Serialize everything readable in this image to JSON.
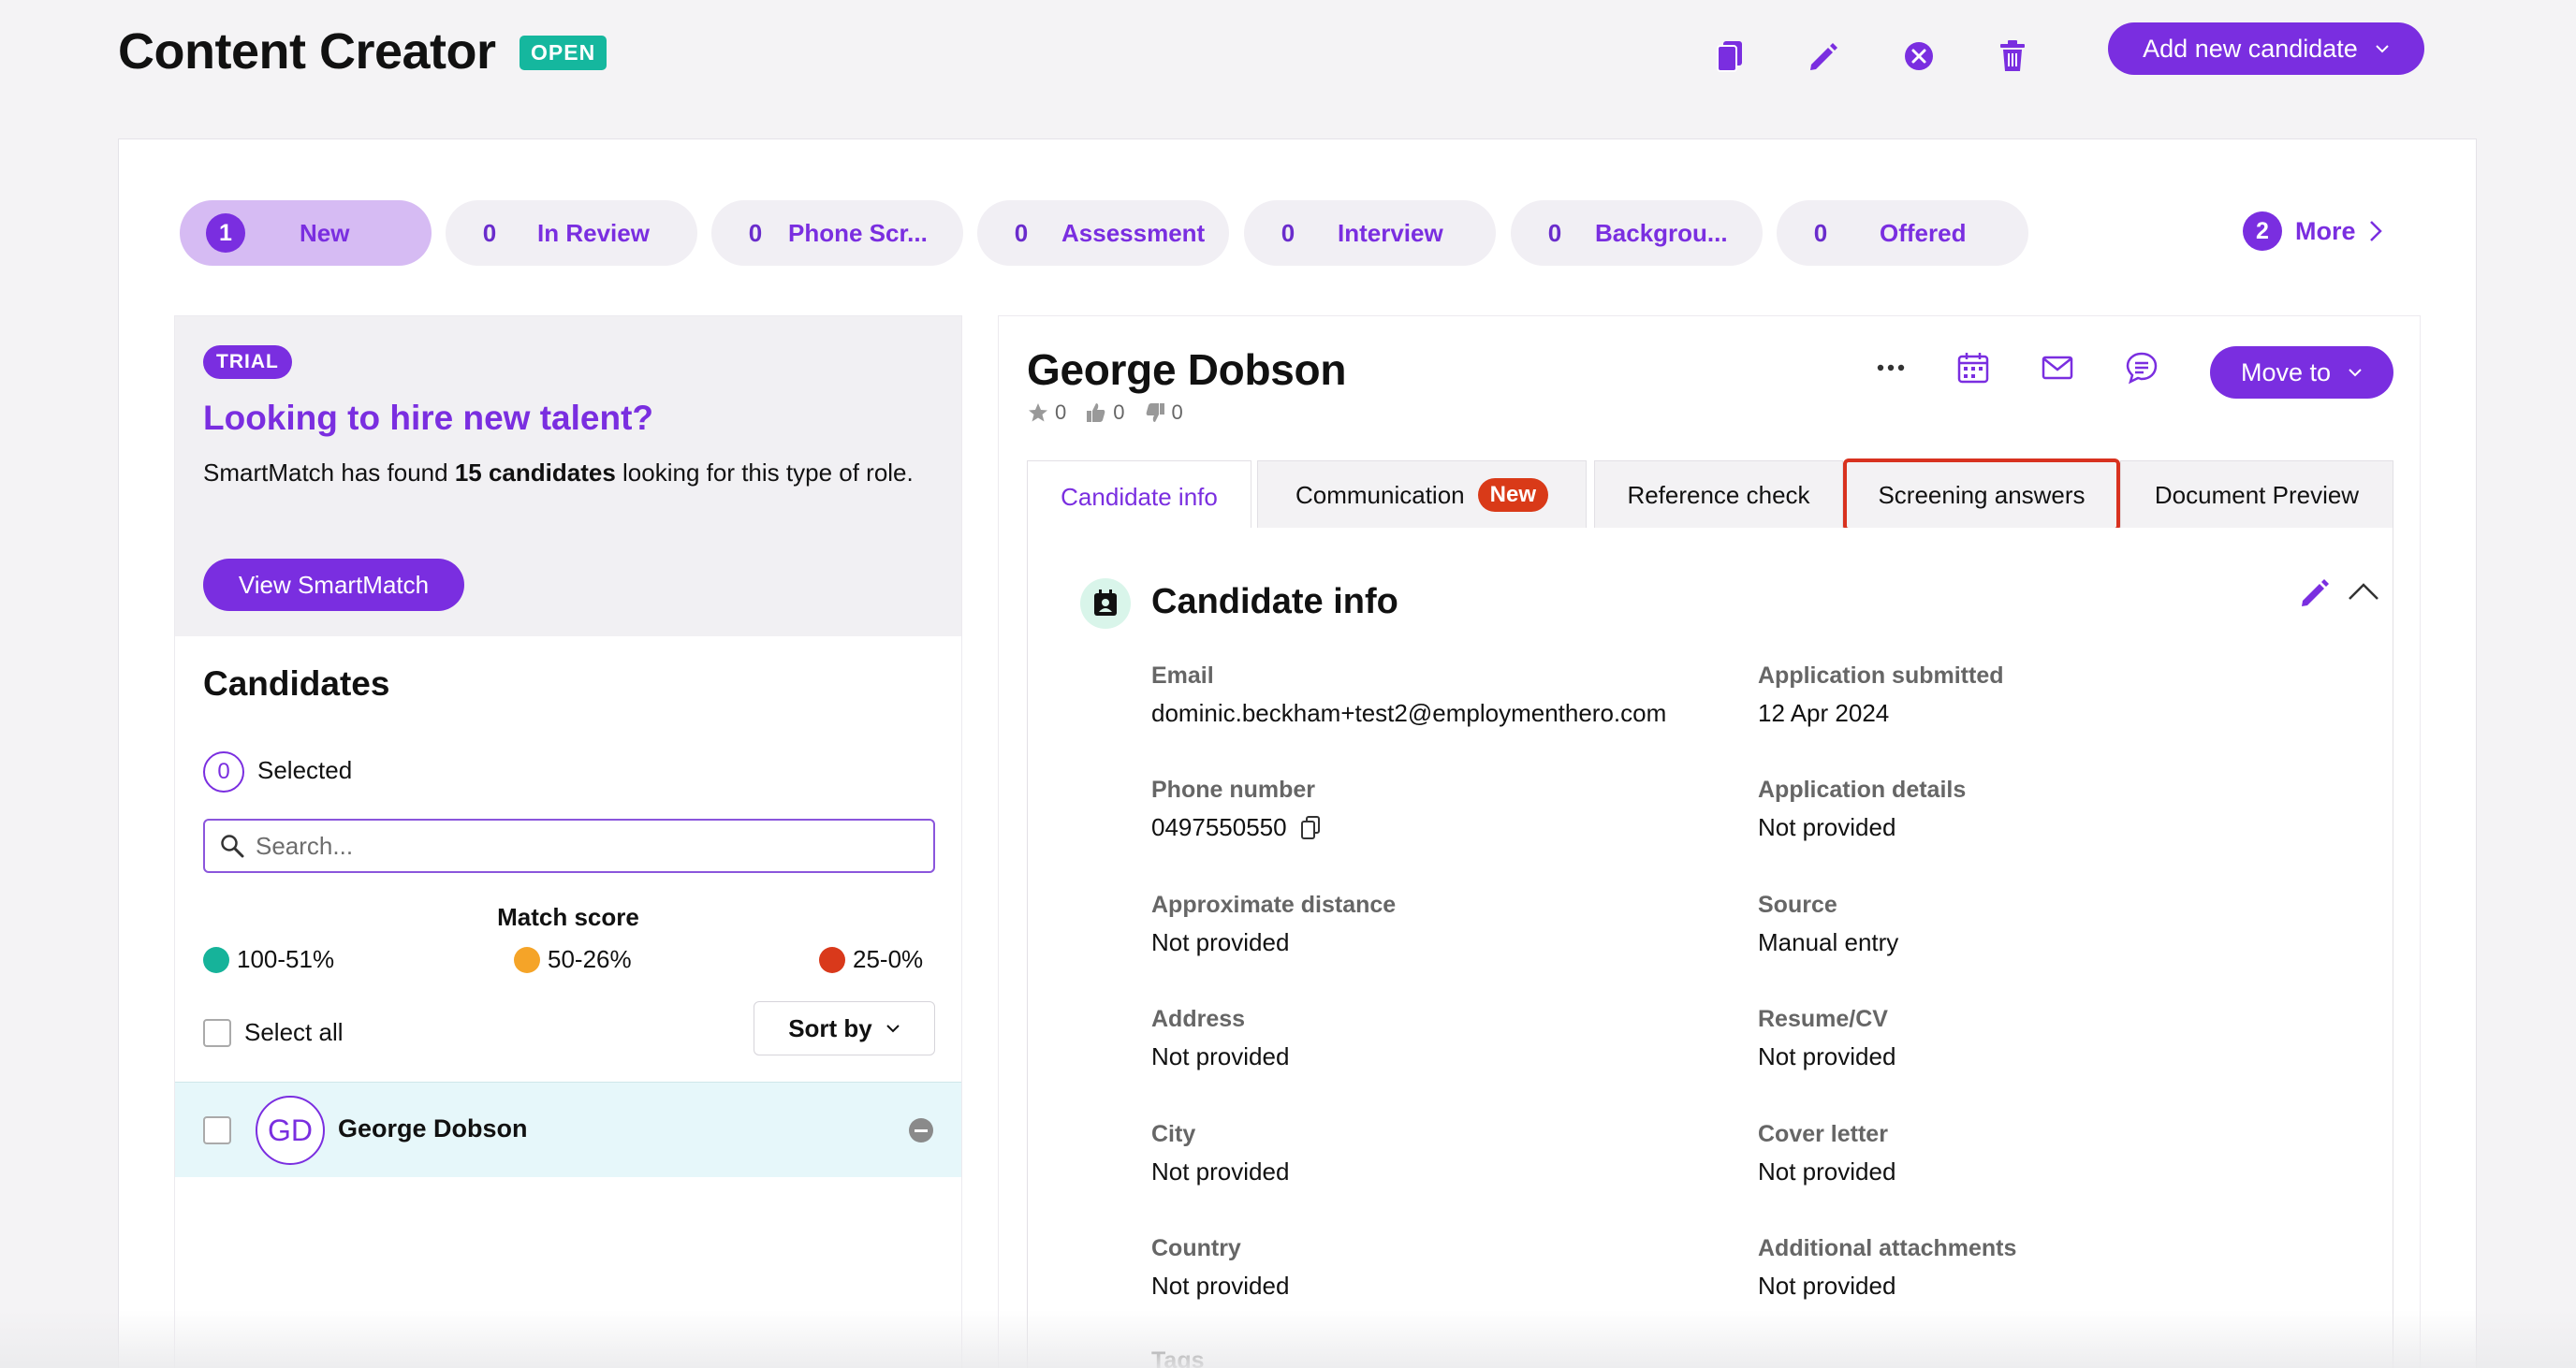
{
  "header": {
    "title": "Content Creator",
    "status": "OPEN",
    "add_button": "Add new candidate"
  },
  "stages": [
    {
      "count": "1",
      "label": "New"
    },
    {
      "count": "0",
      "label": "In Review"
    },
    {
      "count": "0",
      "label": "Phone Scr..."
    },
    {
      "count": "0",
      "label": "Assessment"
    },
    {
      "count": "0",
      "label": "Interview"
    },
    {
      "count": "0",
      "label": "Backgrou..."
    },
    {
      "count": "0",
      "label": "Offered"
    }
  ],
  "more": {
    "count": "2",
    "label": "More"
  },
  "promo": {
    "badge": "TRIAL",
    "title": "Looking to hire new talent?",
    "text_before": "SmartMatch has found ",
    "text_bold": "15 candidates",
    "text_after": " looking for this type of role.",
    "button": "View SmartMatch"
  },
  "candidates": {
    "heading": "Candidates",
    "selected_count": "0",
    "selected_label": "Selected",
    "search_placeholder": "Search...",
    "match_title": "Match score",
    "legend": [
      {
        "label": "100-51%",
        "color": "#16b39a"
      },
      {
        "label": "50-26%",
        "color": "#f5a428"
      },
      {
        "label": "25-0%",
        "color": "#d9391b"
      }
    ],
    "select_all": "Select all",
    "sort_by": "Sort by",
    "list": [
      {
        "initials": "GD",
        "name": "George Dobson"
      }
    ]
  },
  "detail": {
    "name": "George Dobson",
    "ratings": {
      "stars": "0",
      "thumbs_up": "0",
      "thumbs_down": "0"
    },
    "move_to": "Move to",
    "tabs": [
      {
        "label": "Candidate info"
      },
      {
        "label": "Communication",
        "badge": "New"
      },
      {
        "label": "Reference check"
      },
      {
        "label": "Screening answers"
      },
      {
        "label": "Document Preview"
      }
    ],
    "section_title": "Candidate info",
    "fields_left": [
      {
        "label": "Email",
        "value": "dominic.beckham+test2@employmenthero.com"
      },
      {
        "label": "Phone number",
        "value": "0497550550"
      },
      {
        "label": "Approximate distance",
        "value": "Not provided"
      },
      {
        "label": "Address",
        "value": "Not provided"
      },
      {
        "label": "City",
        "value": "Not provided"
      },
      {
        "label": "Country",
        "value": "Not provided"
      },
      {
        "label": "Tags",
        "value": ""
      }
    ],
    "fields_right": [
      {
        "label": "Application submitted",
        "value": "12 Apr 2024"
      },
      {
        "label": "Application details",
        "value": "Not provided"
      },
      {
        "label": "Source",
        "value": "Manual entry"
      },
      {
        "label": "Resume/CV",
        "value": "Not provided"
      },
      {
        "label": "Cover letter",
        "value": "Not provided"
      },
      {
        "label": "Additional attachments",
        "value": "Not provided"
      }
    ]
  },
  "colors": {
    "accent": "#7a2ee0",
    "status_open": "#15b79e",
    "new_badge": "#d93a18",
    "highlight": "#d8321f"
  }
}
